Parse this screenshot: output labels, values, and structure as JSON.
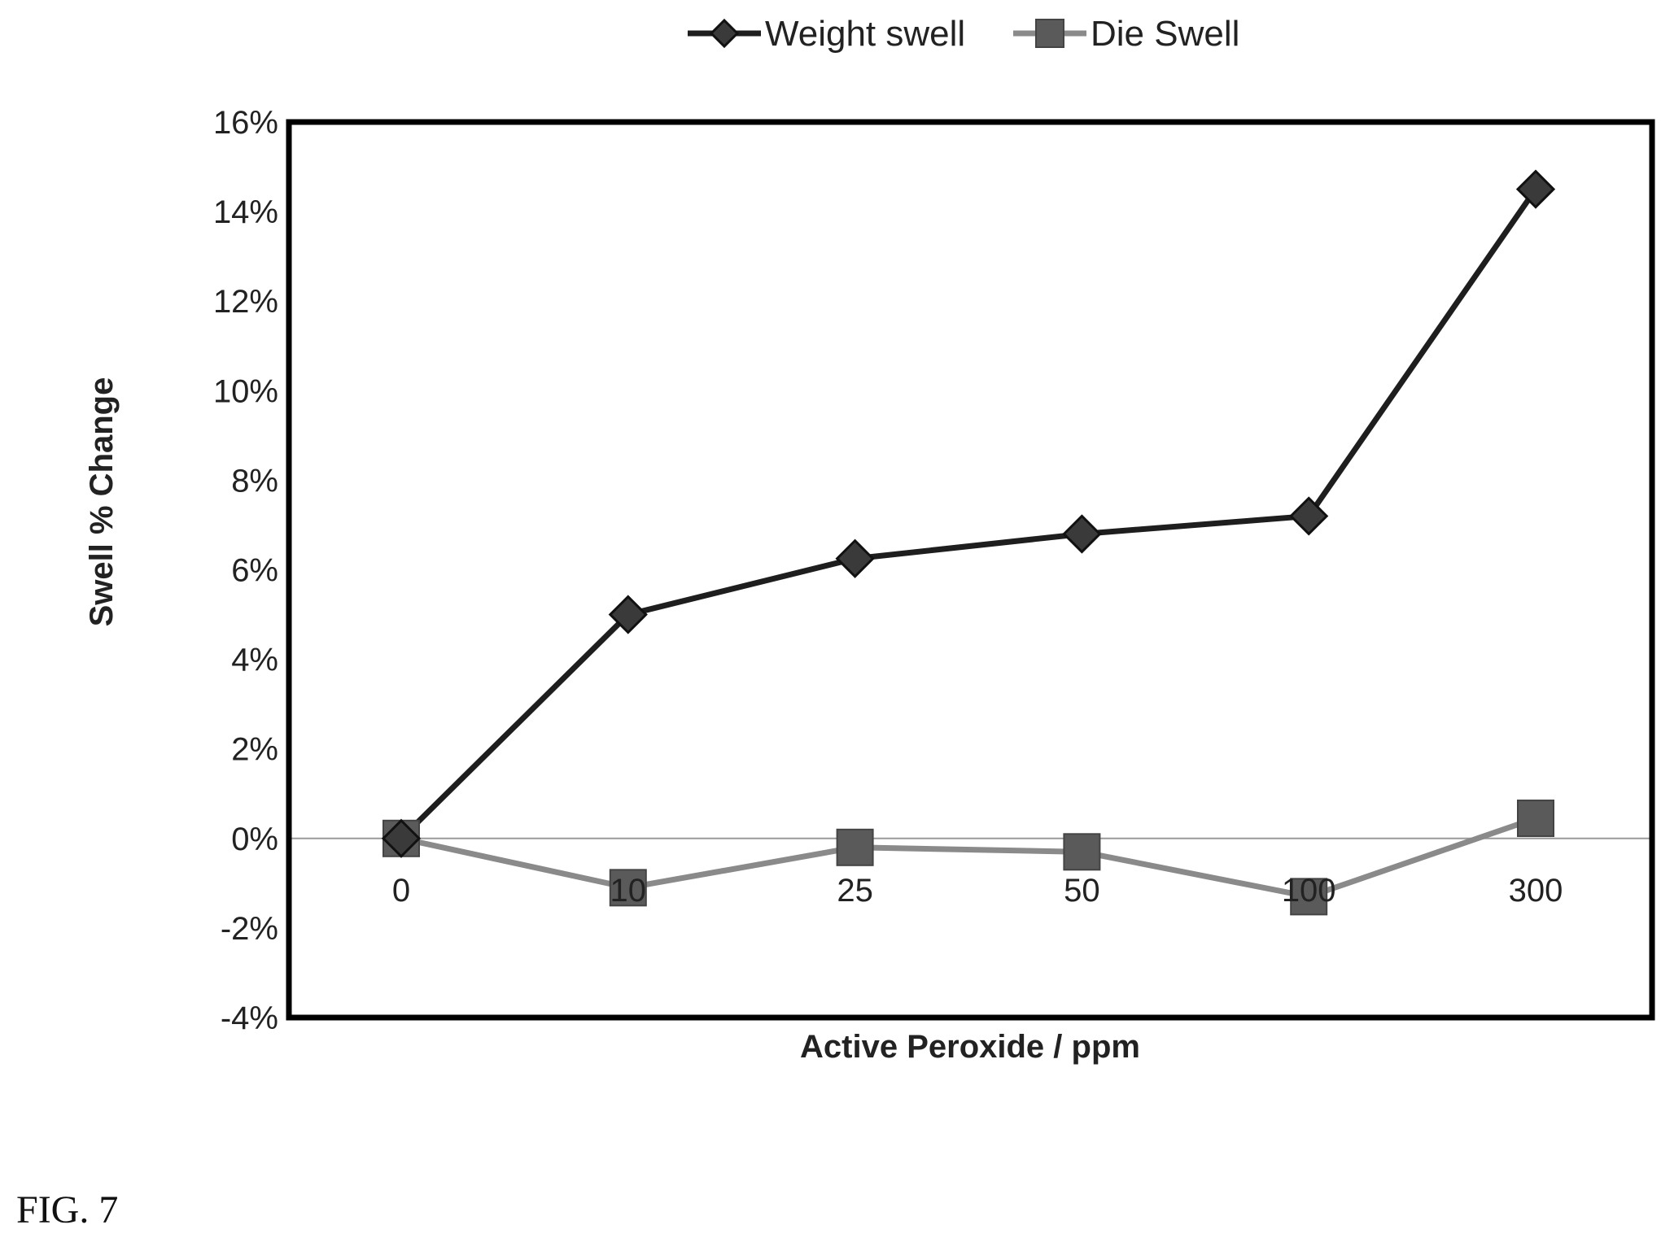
{
  "figure_label": "FIG. 7",
  "chart_data": {
    "type": "line",
    "categories": [
      "0",
      "10",
      "25",
      "50",
      "100",
      "300"
    ],
    "series": [
      {
        "name": "Weight swell",
        "values": [
          0.0,
          0.05,
          0.0625,
          0.068,
          0.072,
          0.145
        ],
        "color": "#1e1e1e",
        "marker": "diamond"
      },
      {
        "name": "Die Swell",
        "values": [
          0.0,
          -0.011,
          -0.002,
          -0.003,
          -0.013,
          0.0045
        ],
        "color": "#8a8a8a",
        "marker": "square"
      }
    ],
    "title": "",
    "xlabel": "Active Peroxide / ppm",
    "ylabel": "Swell  % Change",
    "ylim": [
      -0.04,
      0.16
    ],
    "yticks": [
      -0.04,
      -0.02,
      0,
      0.02,
      0.04,
      0.06,
      0.08,
      0.1,
      0.12,
      0.14,
      0.16
    ],
    "ytick_labels": [
      "-4%",
      "-2%",
      "0%",
      "2%",
      "4%",
      "6%",
      "8%",
      "10%",
      "12%",
      "14%",
      "16%"
    ],
    "legend_position": "top-center",
    "grid": false,
    "zero_line_color": "#9a9a9a"
  }
}
